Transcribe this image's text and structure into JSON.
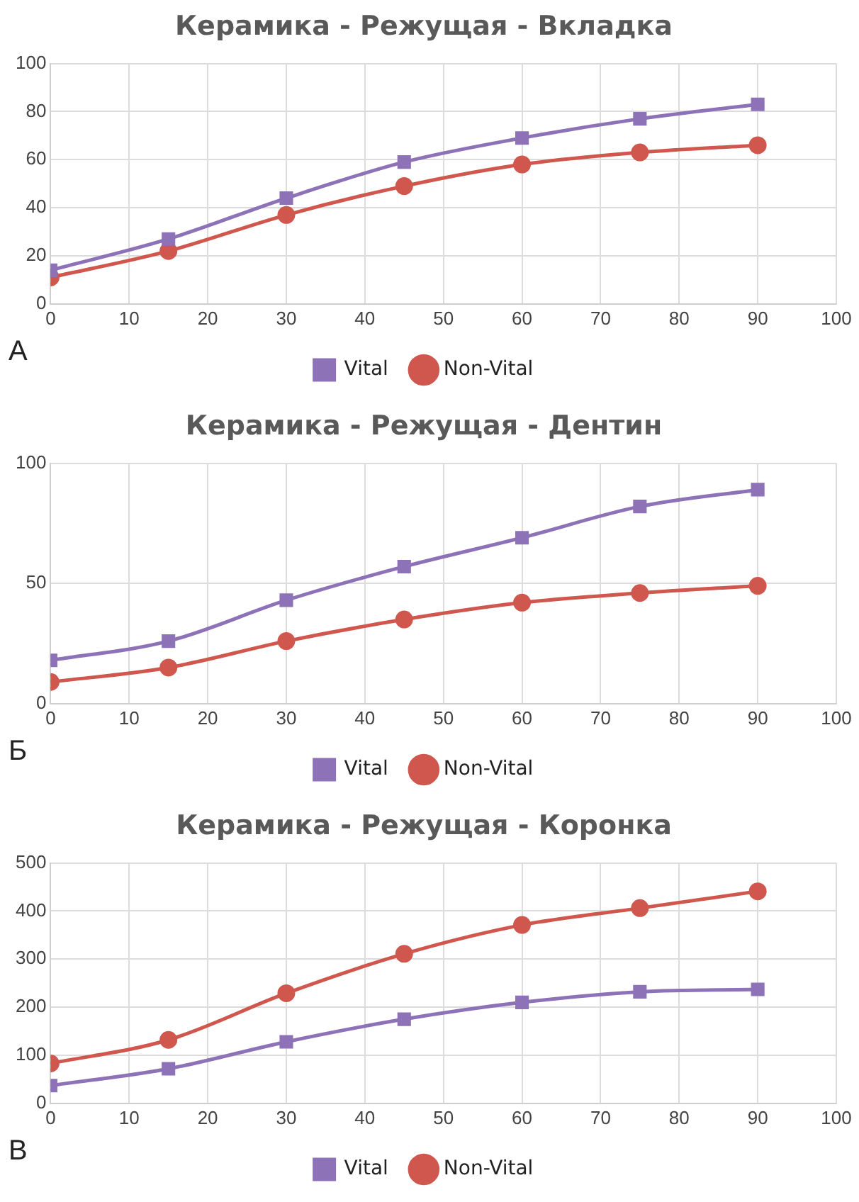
{
  "chart_data": [
    {
      "type": "line",
      "title": "Керамика - Режущая - Вкладка",
      "annotations": [
        "А"
      ],
      "x": [
        0,
        15,
        30,
        45,
        60,
        75,
        90
      ],
      "xlim": [
        0,
        100
      ],
      "xticks": [
        0,
        10,
        20,
        30,
        40,
        50,
        60,
        70,
        80,
        90,
        100
      ],
      "ylim": [
        0,
        100
      ],
      "yticks": [
        0,
        20,
        40,
        60,
        80,
        100
      ],
      "grid": true,
      "legend": "bottom",
      "series": [
        {
          "name": "Vital",
          "color": "#8e72b8",
          "marker": "square",
          "values": [
            14,
            27,
            44,
            59,
            69,
            77,
            83
          ]
        },
        {
          "name": "Non-Vital",
          "color": "#d0574d",
          "marker": "circle",
          "values": [
            11,
            22,
            37,
            49,
            58,
            63,
            66
          ]
        }
      ]
    },
    {
      "type": "line",
      "title": "Керамика - Режущая - Дентин",
      "annotations": [
        "Б"
      ],
      "x": [
        0,
        15,
        30,
        45,
        60,
        75,
        90
      ],
      "xlim": [
        0,
        100
      ],
      "xticks": [
        0,
        10,
        20,
        30,
        40,
        50,
        60,
        70,
        80,
        90,
        100
      ],
      "ylim": [
        0,
        100
      ],
      "yticks": [
        0,
        50,
        100
      ],
      "grid": true,
      "legend": "bottom",
      "series": [
        {
          "name": "Vital",
          "color": "#8e72b8",
          "marker": "square",
          "values": [
            18,
            26,
            43,
            57,
            69,
            82,
            89
          ]
        },
        {
          "name": "Non-Vital",
          "color": "#d0574d",
          "marker": "circle",
          "values": [
            9,
            15,
            26,
            35,
            42,
            46,
            49
          ]
        }
      ]
    },
    {
      "type": "line",
      "title": "Керамика - Режущая - Коронка",
      "annotations": [
        "В"
      ],
      "x": [
        0,
        15,
        30,
        45,
        60,
        75,
        90
      ],
      "xlim": [
        0,
        100
      ],
      "xticks": [
        0,
        10,
        20,
        30,
        40,
        50,
        60,
        70,
        80,
        90,
        100
      ],
      "ylim": [
        0,
        500
      ],
      "yticks": [
        0,
        100,
        200,
        300,
        400,
        500
      ],
      "grid": true,
      "legend": "bottom",
      "series": [
        {
          "name": "Vital",
          "color": "#8e72b8",
          "marker": "square",
          "values": [
            37,
            72,
            128,
            175,
            210,
            232,
            237
          ]
        },
        {
          "name": "Non-Vital",
          "color": "#d0574d",
          "marker": "circle",
          "values": [
            83,
            132,
            229,
            311,
            371,
            406,
            441
          ]
        }
      ]
    }
  ]
}
